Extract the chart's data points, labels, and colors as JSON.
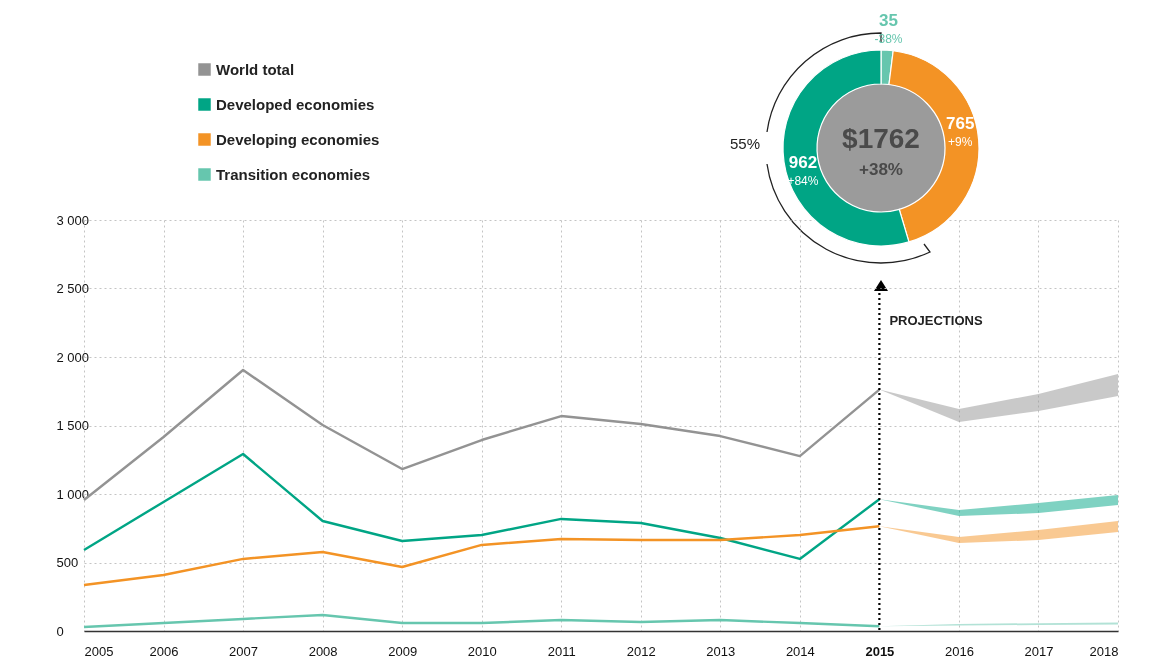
{
  "chart_data": [
    {
      "type": "line",
      "x": [
        2005,
        2006,
        2007,
        2008,
        2009,
        2010,
        2011,
        2012,
        2013,
        2014,
        2015,
        2016,
        2017,
        2018
      ],
      "series": [
        {
          "name": "World total",
          "color": "#939393",
          "values": [
            956,
            1416,
            1905,
            1504,
            1182,
            1394,
            1569,
            1511,
            1423,
            1277,
            1762,
            null,
            null,
            null
          ],
          "lower": [
            null,
            null,
            null,
            null,
            null,
            null,
            null,
            null,
            null,
            null,
            1762,
            1526,
            1606,
            1715
          ],
          "upper": [
            null,
            null,
            null,
            null,
            null,
            null,
            null,
            null,
            null,
            null,
            1762,
            1620,
            1730,
            1876
          ]
        },
        {
          "name": "Developed economies",
          "color": "#00a585",
          "values": [
            591,
            942,
            1292,
            803,
            657,
            701,
            818,
            788,
            679,
            526,
            962,
            null,
            null,
            null
          ],
          "lower": [
            null,
            null,
            null,
            null,
            null,
            null,
            null,
            null,
            null,
            null,
            962,
            839,
            861,
            920
          ],
          "upper": [
            null,
            null,
            null,
            null,
            null,
            null,
            null,
            null,
            null,
            null,
            962,
            883,
            934,
            993
          ]
        },
        {
          "name": "Developing economies",
          "color": "#f39325",
          "values": [
            336,
            409,
            526,
            577,
            467,
            628,
            672,
            664,
            664,
            701,
            765,
            null,
            null,
            null
          ],
          "lower": [
            null,
            null,
            null,
            null,
            null,
            null,
            null,
            null,
            null,
            null,
            765,
            642,
            664,
            723
          ],
          "upper": [
            null,
            null,
            null,
            null,
            null,
            null,
            null,
            null,
            null,
            null,
            765,
            686,
            737,
            803
          ]
        },
        {
          "name": "Transition economies",
          "color": "#66c6ae",
          "values": [
            29,
            58,
            88,
            117,
            58,
            58,
            80,
            66,
            80,
            58,
            35,
            null,
            null,
            null
          ],
          "lower": [
            null,
            null,
            null,
            null,
            null,
            null,
            null,
            null,
            null,
            null,
            35,
            40,
            44,
            48
          ],
          "upper": [
            null,
            null,
            null,
            null,
            null,
            null,
            null,
            null,
            null,
            null,
            35,
            52,
            57,
            62
          ]
        }
      ],
      "xlim": [
        2005,
        2018
      ],
      "xticks": [
        2005,
        2006,
        2007,
        2008,
        2009,
        2010,
        2011,
        2012,
        2013,
        2014,
        2015,
        2016,
        2017,
        2018
      ],
      "ylim": [
        0,
        3000
      ],
      "yticks": [
        0,
        500,
        {
          "value": 1000,
          "label": "1 000"
        },
        {
          "value": 1500,
          "label": "1 500"
        },
        {
          "value": 2000,
          "label": "2 000"
        },
        {
          "value": 2500,
          "label": "2 500"
        },
        {
          "value": 3000,
          "label": "3 000"
        }
      ],
      "ref_lines": [
        {
          "axis": "x",
          "value": 2015,
          "label": "PROJECTIONS",
          "line_style": "dotted",
          "color": "#000000"
        }
      ],
      "grid": true,
      "legend": "top left",
      "marker": "none"
    },
    {
      "type": "donut",
      "categories": [
        null,
        null,
        null
      ],
      "values": [
        35,
        765,
        962
      ],
      "colors": [
        "#66c6ae",
        "#f39325",
        "#00a585"
      ],
      "data_labels": true,
      "annotations": [
        "-38%",
        "+9%",
        "+84%",
        "55%",
        "$1762",
        "+38%"
      ]
    }
  ]
}
